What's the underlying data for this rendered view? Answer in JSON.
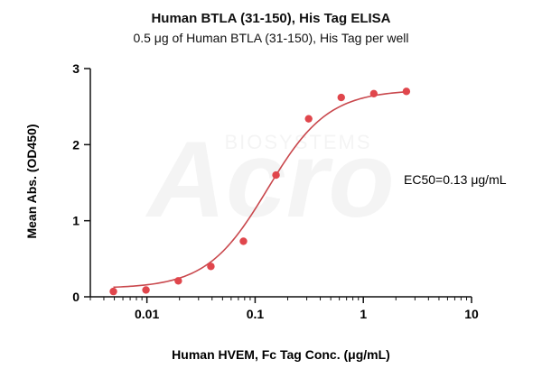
{
  "chart_data": {
    "type": "scatter",
    "title": "Human BTLA (31-150), His Tag ELISA",
    "subtitle": "0.5 μg of Human BTLA (31-150), His Tag per well",
    "xlabel": "Human HVEM, Fc Tag Conc. (μg/mL)",
    "ylabel": "Mean Abs. (OD450)",
    "x_scale": "log",
    "xlim": [
      0.003,
      10
    ],
    "ylim": [
      0,
      3
    ],
    "x_ticks": [
      0.01,
      0.1,
      1,
      10
    ],
    "x_tick_labels": [
      "0.01",
      "0.1",
      "1",
      "10"
    ],
    "y_ticks": [
      0,
      1,
      2,
      3
    ],
    "y_tick_labels": [
      "0",
      "1",
      "2",
      "3"
    ],
    "grid": false,
    "annotation": "EC50=0.13 μg/mL",
    "watermark": "Acro BIOSYSTEMS",
    "series": [
      {
        "type": "scatter",
        "x": [
          0.0049,
          0.0098,
          0.0195,
          0.039,
          0.078,
          0.156,
          0.3125,
          0.625,
          1.25,
          2.5
        ],
        "y": [
          0.07,
          0.09,
          0.21,
          0.4,
          0.73,
          1.6,
          2.34,
          2.62,
          2.67,
          2.7
        ],
        "color": "#e0464c"
      },
      {
        "type": "fit",
        "model": "4PL",
        "bottom": 0.11,
        "top": 2.72,
        "ec50": 0.13,
        "hill": 1.55,
        "color": "#c9484d"
      }
    ]
  },
  "colors": {
    "point": "#e0464c",
    "curve": "#c9484d",
    "axis": "#111111"
  }
}
